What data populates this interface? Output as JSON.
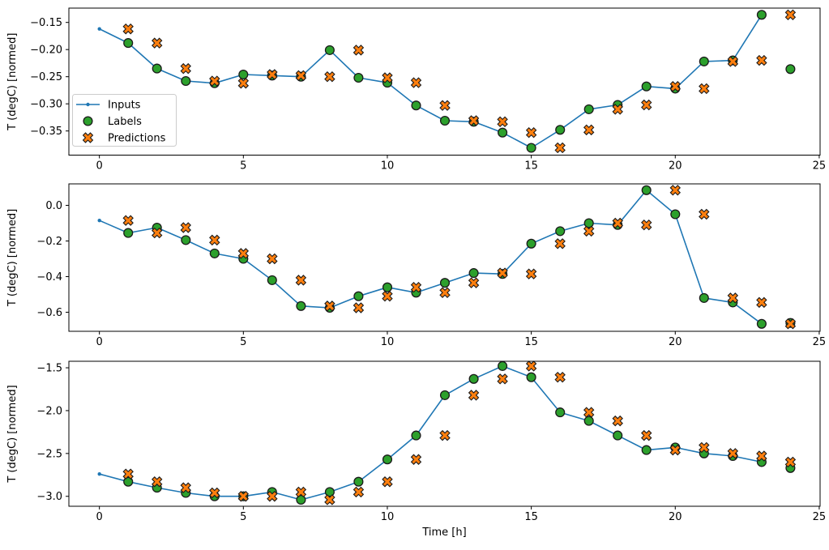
{
  "figure": {
    "xlabel": "Time [h]",
    "ylabel": "T (degC) [normed]",
    "xtick_values": [
      0,
      5,
      10,
      15,
      20,
      25
    ],
    "xtick_labels": [
      "0",
      "5",
      "10",
      "15",
      "20",
      "25"
    ],
    "xlim": [
      -1.06,
      25.03
    ],
    "colors": {
      "inputs_line": "#1f77b4",
      "labels_marker": "#2ca02c",
      "predictions_marker": "#ff7f0e",
      "marker_edge": "#1a1a1a",
      "spine": "#000000",
      "legend_border": "#cccccc",
      "background": "#ffffff"
    },
    "legend": {
      "entries": [
        {
          "label": "Inputs",
          "marker": "line-with-dot",
          "color": "#1f77b4"
        },
        {
          "label": "Labels",
          "marker": "circle",
          "color": "#2ca02c"
        },
        {
          "label": "Predictions",
          "marker": "x",
          "color": "#ff7f0e"
        }
      ]
    }
  },
  "chart_data": [
    {
      "type": "line",
      "subplot": 1,
      "ylabel": "T (degC) [normed]",
      "ytick_values": [
        -0.15,
        -0.2,
        -0.25,
        -0.3,
        -0.35
      ],
      "ytick_labels": [
        "−0.15",
        "−0.20",
        "−0.25",
        "−0.30",
        "−0.35"
      ],
      "ylim": [
        -0.3945,
        -0.1236
      ],
      "legend_position": "left-center",
      "series": [
        {
          "name": "Inputs",
          "type": "line",
          "marker": "dot",
          "color": "#1f77b4",
          "x": [
            0,
            1,
            2,
            3,
            4,
            5,
            6,
            7,
            8,
            9,
            10,
            11,
            12,
            13,
            14,
            15,
            16,
            17,
            18,
            19,
            20,
            21,
            22,
            23
          ],
          "y": [
            -0.162,
            -0.188,
            -0.235,
            -0.258,
            -0.262,
            -0.246,
            -0.248,
            -0.25,
            -0.201,
            -0.252,
            -0.261,
            -0.303,
            -0.331,
            -0.333,
            -0.353,
            -0.381,
            -0.348,
            -0.31,
            -0.302,
            -0.268,
            -0.272,
            -0.222,
            -0.22,
            -0.136
          ]
        },
        {
          "name": "Labels",
          "type": "scatter",
          "marker": "circle",
          "color": "#2ca02c",
          "x": [
            1,
            2,
            3,
            4,
            5,
            6,
            7,
            8,
            9,
            10,
            11,
            12,
            13,
            14,
            15,
            16,
            17,
            18,
            19,
            20,
            21,
            22,
            23,
            24
          ],
          "y": [
            -0.188,
            -0.235,
            -0.258,
            -0.262,
            -0.246,
            -0.248,
            -0.25,
            -0.201,
            -0.252,
            -0.261,
            -0.303,
            -0.331,
            -0.333,
            -0.353,
            -0.381,
            -0.348,
            -0.31,
            -0.302,
            -0.268,
            -0.272,
            -0.222,
            -0.22,
            -0.136,
            -0.236
          ]
        },
        {
          "name": "Predictions",
          "type": "scatter",
          "marker": "X",
          "color": "#ff7f0e",
          "x": [
            1,
            2,
            3,
            4,
            5,
            6,
            7,
            8,
            9,
            10,
            11,
            12,
            13,
            14,
            15,
            16,
            17,
            18,
            19,
            20,
            21,
            22,
            23,
            24
          ],
          "y": [
            -0.162,
            -0.188,
            -0.235,
            -0.258,
            -0.262,
            -0.246,
            -0.248,
            -0.25,
            -0.201,
            -0.252,
            -0.261,
            -0.303,
            -0.331,
            -0.333,
            -0.353,
            -0.381,
            -0.348,
            -0.31,
            -0.302,
            -0.268,
            -0.272,
            -0.222,
            -0.22,
            -0.136
          ]
        }
      ]
    },
    {
      "type": "line",
      "subplot": 2,
      "ylabel": "T (degC) [normed]",
      "ytick_values": [
        0.0,
        -0.2,
        -0.4,
        -0.6
      ],
      "ytick_labels": [
        "0.0",
        "−0.2",
        "−0.4",
        "−0.6"
      ],
      "ylim": [
        -0.707,
        0.1205
      ],
      "series": [
        {
          "name": "Inputs",
          "type": "line",
          "marker": "dot",
          "color": "#1f77b4",
          "x": [
            0,
            1,
            2,
            3,
            4,
            5,
            6,
            7,
            8,
            9,
            10,
            11,
            12,
            13,
            14,
            15,
            16,
            17,
            18,
            19,
            20,
            21,
            22,
            23
          ],
          "y": [
            -0.085,
            -0.155,
            -0.125,
            -0.195,
            -0.27,
            -0.3,
            -0.42,
            -0.565,
            -0.575,
            -0.51,
            -0.46,
            -0.49,
            -0.435,
            -0.38,
            -0.385,
            -0.215,
            -0.145,
            -0.1,
            -0.11,
            0.085,
            -0.05,
            -0.52,
            -0.545,
            -0.665
          ]
        },
        {
          "name": "Labels",
          "type": "scatter",
          "marker": "circle",
          "color": "#2ca02c",
          "x": [
            1,
            2,
            3,
            4,
            5,
            6,
            7,
            8,
            9,
            10,
            11,
            12,
            13,
            14,
            15,
            16,
            17,
            18,
            19,
            20,
            21,
            22,
            23,
            24
          ],
          "y": [
            -0.155,
            -0.125,
            -0.195,
            -0.27,
            -0.3,
            -0.42,
            -0.565,
            -0.575,
            -0.51,
            -0.46,
            -0.49,
            -0.435,
            -0.38,
            -0.385,
            -0.215,
            -0.145,
            -0.1,
            -0.11,
            0.085,
            -0.05,
            -0.52,
            -0.545,
            -0.665,
            -0.66
          ]
        },
        {
          "name": "Predictions",
          "type": "scatter",
          "marker": "X",
          "color": "#ff7f0e",
          "x": [
            1,
            2,
            3,
            4,
            5,
            6,
            7,
            8,
            9,
            10,
            11,
            12,
            13,
            14,
            15,
            16,
            17,
            18,
            19,
            20,
            21,
            22,
            23,
            24
          ],
          "y": [
            -0.085,
            -0.155,
            -0.125,
            -0.195,
            -0.27,
            -0.3,
            -0.42,
            -0.565,
            -0.575,
            -0.51,
            -0.46,
            -0.49,
            -0.435,
            -0.38,
            -0.385,
            -0.215,
            -0.145,
            -0.1,
            -0.11,
            0.085,
            -0.05,
            -0.52,
            -0.545,
            -0.665
          ]
        }
      ]
    },
    {
      "type": "line",
      "subplot": 3,
      "ylabel": "T (degC) [normed]",
      "xlabel": "Time [h]",
      "ytick_values": [
        -1.5,
        -2.0,
        -2.5,
        -3.0
      ],
      "ytick_labels": [
        "−1.5",
        "−2.0",
        "−2.5",
        "−3.0"
      ],
      "ylim": [
        -3.116,
        -1.424
      ],
      "series": [
        {
          "name": "Inputs",
          "type": "line",
          "marker": "dot",
          "color": "#1f77b4",
          "x": [
            0,
            1,
            2,
            3,
            4,
            5,
            6,
            7,
            8,
            9,
            10,
            11,
            12,
            13,
            14,
            15,
            16,
            17,
            18,
            19,
            20,
            21,
            22,
            23
          ],
          "y": [
            -2.74,
            -2.83,
            -2.9,
            -2.96,
            -3.0,
            -3.0,
            -2.95,
            -3.04,
            -2.95,
            -2.83,
            -2.57,
            -2.29,
            -1.82,
            -1.63,
            -1.48,
            -1.61,
            -2.02,
            -2.12,
            -2.29,
            -2.46,
            -2.43,
            -2.5,
            -2.53,
            -2.6
          ]
        },
        {
          "name": "Labels",
          "type": "scatter",
          "marker": "circle",
          "color": "#2ca02c",
          "x": [
            1,
            2,
            3,
            4,
            5,
            6,
            7,
            8,
            9,
            10,
            11,
            12,
            13,
            14,
            15,
            16,
            17,
            18,
            19,
            20,
            21,
            22,
            23,
            24
          ],
          "y": [
            -2.83,
            -2.9,
            -2.96,
            -3.0,
            -3.0,
            -2.95,
            -3.04,
            -2.95,
            -2.83,
            -2.57,
            -2.29,
            -1.82,
            -1.63,
            -1.48,
            -1.61,
            -2.02,
            -2.12,
            -2.29,
            -2.46,
            -2.43,
            -2.5,
            -2.53,
            -2.6,
            -2.67
          ]
        },
        {
          "name": "Predictions",
          "type": "scatter",
          "marker": "X",
          "color": "#ff7f0e",
          "x": [
            1,
            2,
            3,
            4,
            5,
            6,
            7,
            8,
            9,
            10,
            11,
            12,
            13,
            14,
            15,
            16,
            17,
            18,
            19,
            20,
            21,
            22,
            23,
            24
          ],
          "y": [
            -2.74,
            -2.83,
            -2.9,
            -2.96,
            -3.0,
            -3.0,
            -2.95,
            -3.04,
            -2.95,
            -2.83,
            -2.57,
            -2.29,
            -1.82,
            -1.63,
            -1.48,
            -1.61,
            -2.02,
            -2.12,
            -2.29,
            -2.46,
            -2.43,
            -2.5,
            -2.53,
            -2.6
          ]
        }
      ]
    }
  ]
}
